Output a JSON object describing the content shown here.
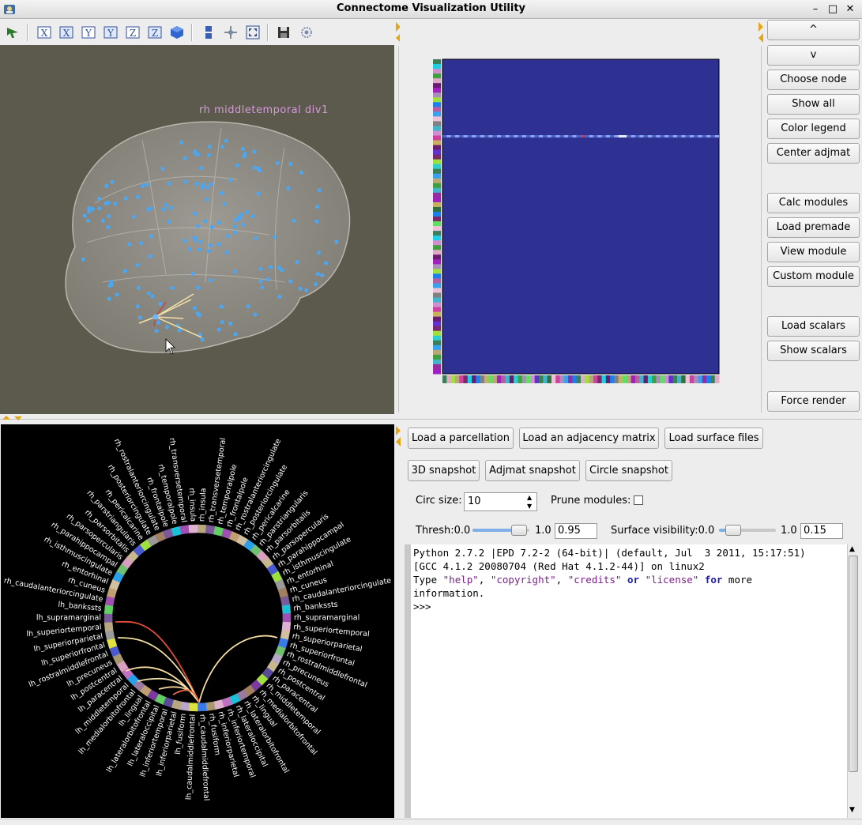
{
  "window": {
    "title": "Connectome Visualization Utility",
    "controls": [
      "–",
      "□",
      "✕"
    ]
  },
  "toolbar": {
    "icons": [
      "select-arrow-icon",
      "x-view-icon",
      "x-view-neg-icon",
      "y-view-icon",
      "y-view-neg-icon",
      "z-view-icon",
      "z-view-neg-icon",
      "iso-view-icon",
      "parallel-projection-icon",
      "mouse-interaction-icon",
      "fullscreen-icon",
      "save-icon",
      "settings-icon"
    ]
  },
  "scene": {
    "node_label": "rh  middletemporal  div1",
    "background": "#5c5a4d"
  },
  "side_buttons": {
    "up": "^",
    "down": "v",
    "choose_node": "Choose node",
    "show_all": "Show all",
    "color_legend": "Color legend",
    "center_adjmat": "Center adjmat",
    "calc_modules": "Calc modules",
    "load_premade": "Load premade",
    "view_module": "View module",
    "custom_module": "Custom module",
    "load_scalars": "Load scalars",
    "show_scalars": "Show scalars",
    "force_render": "Force render"
  },
  "load_buttons": {
    "load_parcellation": "Load a parcellation",
    "load_adjmat": "Load an adjacency matrix",
    "load_surface": "Load surface files"
  },
  "snapshot_buttons": {
    "snap3d": "3D snapshot",
    "snap_adjmat": "Adjmat snapshot",
    "snap_circle": "Circle snapshot"
  },
  "controls": {
    "circ_size_label": "Circ size:",
    "circ_size_value": "10",
    "prune_label": "Prune modules:",
    "prune_checked": false,
    "thresh_label": "Thresh:0.0",
    "thresh_max": "1.0",
    "thresh_value": "0.95",
    "thresh_slider": 0.95,
    "surf_label": "Surface visibility:0.0",
    "surf_max": "1.0",
    "surf_value": "0.15",
    "surf_slider": 0.15
  },
  "console": {
    "line1": "Python 2.7.2 |EPD 7.2-2 (64-bit)| (default, Jul  3 2011, 15:17:51)",
    "line2": "[GCC 4.1.2 20080704 (Red Hat 4.1.2-44)] on linux2",
    "line3_a": "Type ",
    "line3_help": "\"help\"",
    "line3_c1": ", ",
    "line3_copyright": "\"copyright\"",
    "line3_c2": ", ",
    "line3_credits": "\"credits\"",
    "line3_or": " or ",
    "line3_license": "\"license\"",
    "line3_for": " for",
    "line3_more": " more",
    "line4": "information.",
    "prompt": ">>>"
  },
  "circle": {
    "right_labels": [
      "rh_insula",
      "rh_transversetemporal",
      "rh_temporalpole",
      "rh_frontalpole",
      "rh_rostralanteriorcingulate",
      "rh_posteriorcingulate",
      "rh_pericalcarine",
      "rh_parstriangularis",
      "rh_parsorbitalis",
      "rh_parsopercularis",
      "rh_parahippocampal",
      "rh_isthmuscingulate",
      "rh_entorhinal",
      "rh_cuneus",
      "rh_caudalanteriorcingulate",
      "rh_bankssts",
      "rh_supramarginal",
      "rh_superiortemporal",
      "rh_superiorparietal",
      "rh_superiorfrontal",
      "rh_rostralmiddlefrontal",
      "rh_precuneus",
      "rh_postcentral",
      "rh_paracentral",
      "rh_middletemporal",
      "rh_medialorbitofrontal",
      "rh_lingual",
      "rh_lateralorbitofrontal",
      "rh_lateraloccipital",
      "rh_inferiortemporal",
      "rh_inferiorparietal",
      "rh_fusiform",
      "rh_caudalmiddlefrontal"
    ],
    "left_labels": [
      "lh_caudalmiddlefrontal",
      "lh_fusiform",
      "lh_inferiorparietal",
      "lh_inferiortemporal",
      "lh_lateraloccipital",
      "lh_lateralorbitofrontal",
      "lh_lingual",
      "lh_medialorbitofrontal",
      "lh_middletemporal",
      "lh_paracentral",
      "lh_postcentral",
      "lh_precuneus",
      "lh_rostralmiddlefrontal",
      "lh_superiorfrontal",
      "lh_superiorparietal",
      "lh_superiortemporal",
      "lh_supramarginal",
      "lh_bankssts",
      "rh_caudalanteriorcingulate",
      "rh_cuneus",
      "rh_entorhinal",
      "rh_isthmuscingulate",
      "rh_parahippocampal",
      "rh_parsopercularis",
      "rh_parsorbitalis",
      "rh_parstriangularis",
      "rh_pericalcarine",
      "rh_posteriorcingulate",
      "rh_rostralanteriorcingulate",
      "rh_frontalpole",
      "rh_temporalpole",
      "rh_transversetemporal",
      "rh_insula"
    ]
  }
}
